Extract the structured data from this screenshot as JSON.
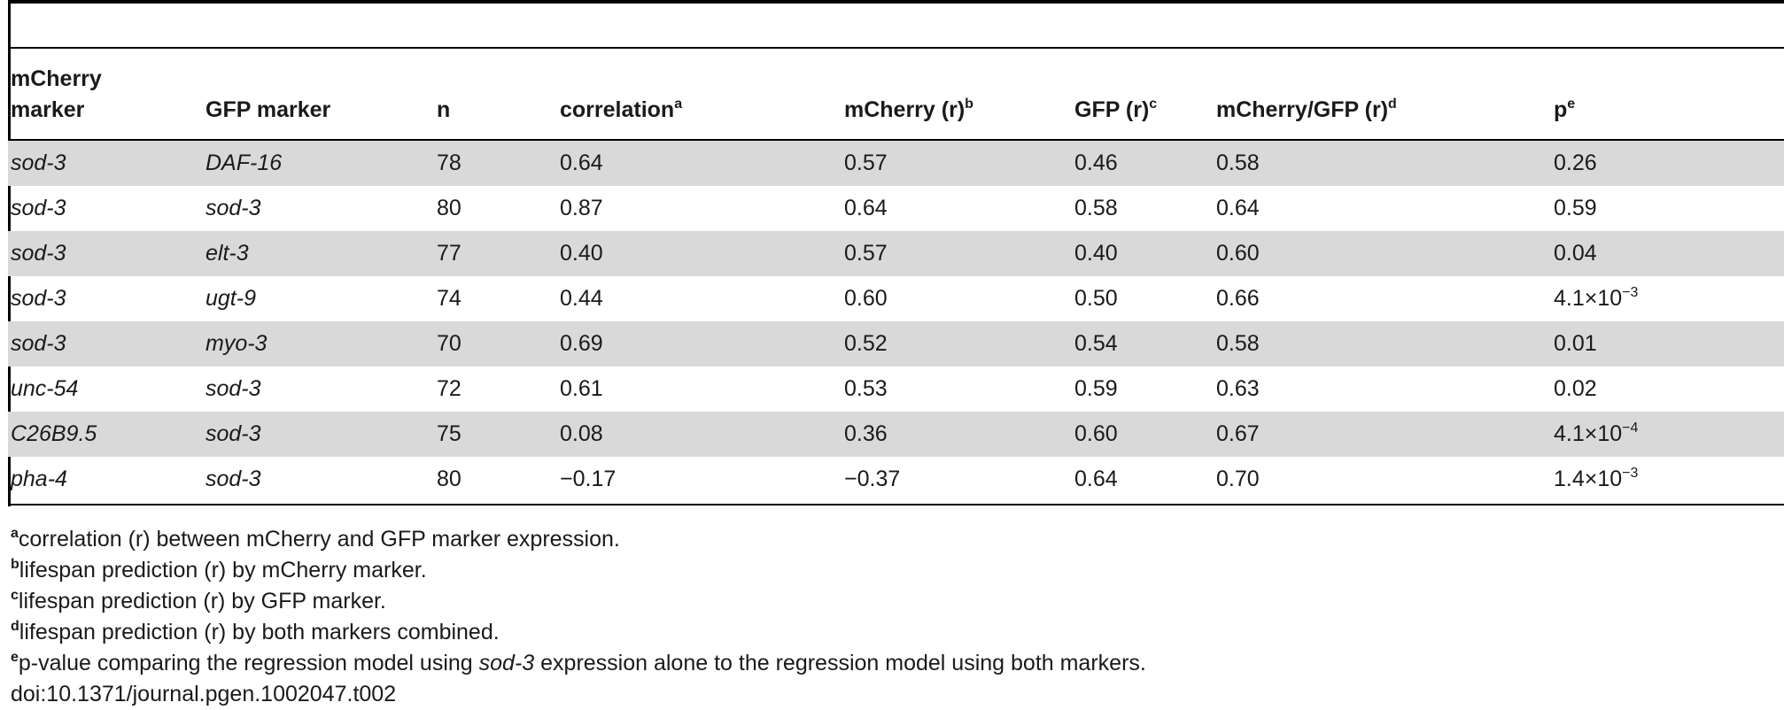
{
  "table": {
    "headers": [
      {
        "line1": "mCherry",
        "line2": "marker",
        "sup": ""
      },
      {
        "label": "GFP marker",
        "sup": ""
      },
      {
        "label": "n",
        "sup": ""
      },
      {
        "label": "correlation",
        "sup": "a"
      },
      {
        "label": "mCherry (r)",
        "sup": "b"
      },
      {
        "label": "GFP (r)",
        "sup": "c"
      },
      {
        "label": "mCherry/GFP (r)",
        "sup": "d"
      },
      {
        "label": "p",
        "sup": "e"
      }
    ],
    "rows": [
      {
        "mcherry": "sod-3",
        "gfp": "DAF-16",
        "n": "78",
        "corr": "0.64",
        "mch_r": "0.57",
        "gfp_r": "0.46",
        "comb_r": "0.58",
        "p": "0.26",
        "p_exp": ""
      },
      {
        "mcherry": "sod-3",
        "gfp": "sod-3",
        "n": "80",
        "corr": "0.87",
        "mch_r": "0.64",
        "gfp_r": "0.58",
        "comb_r": "0.64",
        "p": "0.59",
        "p_exp": ""
      },
      {
        "mcherry": "sod-3",
        "gfp": "elt-3",
        "n": "77",
        "corr": "0.40",
        "mch_r": "0.57",
        "gfp_r": "0.40",
        "comb_r": "0.60",
        "p": "0.04",
        "p_exp": ""
      },
      {
        "mcherry": "sod-3",
        "gfp": "ugt-9",
        "n": "74",
        "corr": "0.44",
        "mch_r": "0.60",
        "gfp_r": "0.50",
        "comb_r": "0.66",
        "p": "4.1×10",
        "p_exp": "−3"
      },
      {
        "mcherry": "sod-3",
        "gfp": "myo-3",
        "n": "70",
        "corr": "0.69",
        "mch_r": "0.52",
        "gfp_r": "0.54",
        "comb_r": "0.58",
        "p": "0.01",
        "p_exp": ""
      },
      {
        "mcherry": "unc-54",
        "gfp": "sod-3",
        "n": "72",
        "corr": "0.61",
        "mch_r": "0.53",
        "gfp_r": "0.59",
        "comb_r": "0.63",
        "p": "0.02",
        "p_exp": ""
      },
      {
        "mcherry": "C26B9.5",
        "gfp": "sod-3",
        "n": "75",
        "corr": "0.08",
        "mch_r": "0.36",
        "gfp_r": "0.60",
        "comb_r": "0.67",
        "p": "4.1×10",
        "p_exp": "−4"
      },
      {
        "mcherry": "pha-4",
        "gfp": "sod-3",
        "n": "80",
        "corr": "−0.17",
        "mch_r": "−0.37",
        "gfp_r": "0.64",
        "comb_r": "0.70",
        "p": "1.4×10",
        "p_exp": "−3"
      }
    ]
  },
  "footnotes": {
    "a": {
      "mark": "a",
      "text": "correlation (r) between mCherry and GFP marker expression."
    },
    "b": {
      "mark": "b",
      "text": "lifespan prediction (r) by mCherry marker."
    },
    "c": {
      "mark": "c",
      "text": "lifespan prediction (r) by GFP marker."
    },
    "d": {
      "mark": "d",
      "text": "lifespan prediction (r) by both markers combined."
    },
    "e": {
      "mark": "e",
      "text_before": "p-value comparing the regression model using ",
      "text_italic": "sod-3",
      "text_after": " expression alone to the regression model using both markers."
    },
    "doi": "doi:10.1371/journal.pgen.1002047.t002"
  }
}
